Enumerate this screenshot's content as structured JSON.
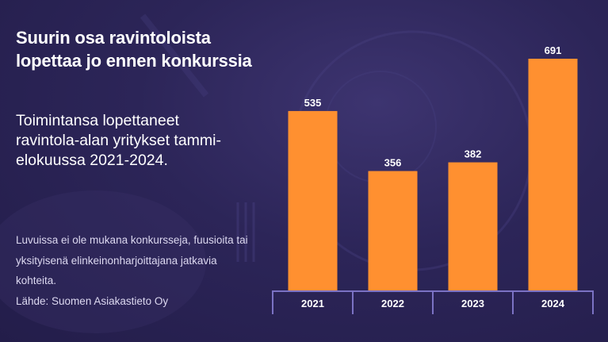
{
  "title": "Suurin osa ravintoloista lopettaa jo ennen konkurssia",
  "subtitle": "Toimintansa lopettaneet ravintola-alan yritykset tammi-elokuussa 2021-2024.",
  "note": "Luvuissa ei ole mukana konkursseja, fuusioita tai yksityisenä elinkeinonharjoittajana jatkavia kohteita.",
  "source": "Lähde: Suomen Asiakastieto Oy",
  "colors": {
    "background": "#2c2558",
    "bar": "#ff9030",
    "axis": "#7b72c4"
  },
  "chart_data": {
    "type": "bar",
    "categories": [
      "2021",
      "2022",
      "2023",
      "2024"
    ],
    "values": [
      535,
      356,
      382,
      691
    ],
    "title": "Suurin osa ravintoloista lopettaa jo ennen konkurssia",
    "xlabel": "",
    "ylabel": "",
    "ylim": [
      0,
      691
    ],
    "grid": false,
    "legend": "none",
    "data_labels": [
      "535",
      "356",
      "382",
      "691"
    ]
  }
}
